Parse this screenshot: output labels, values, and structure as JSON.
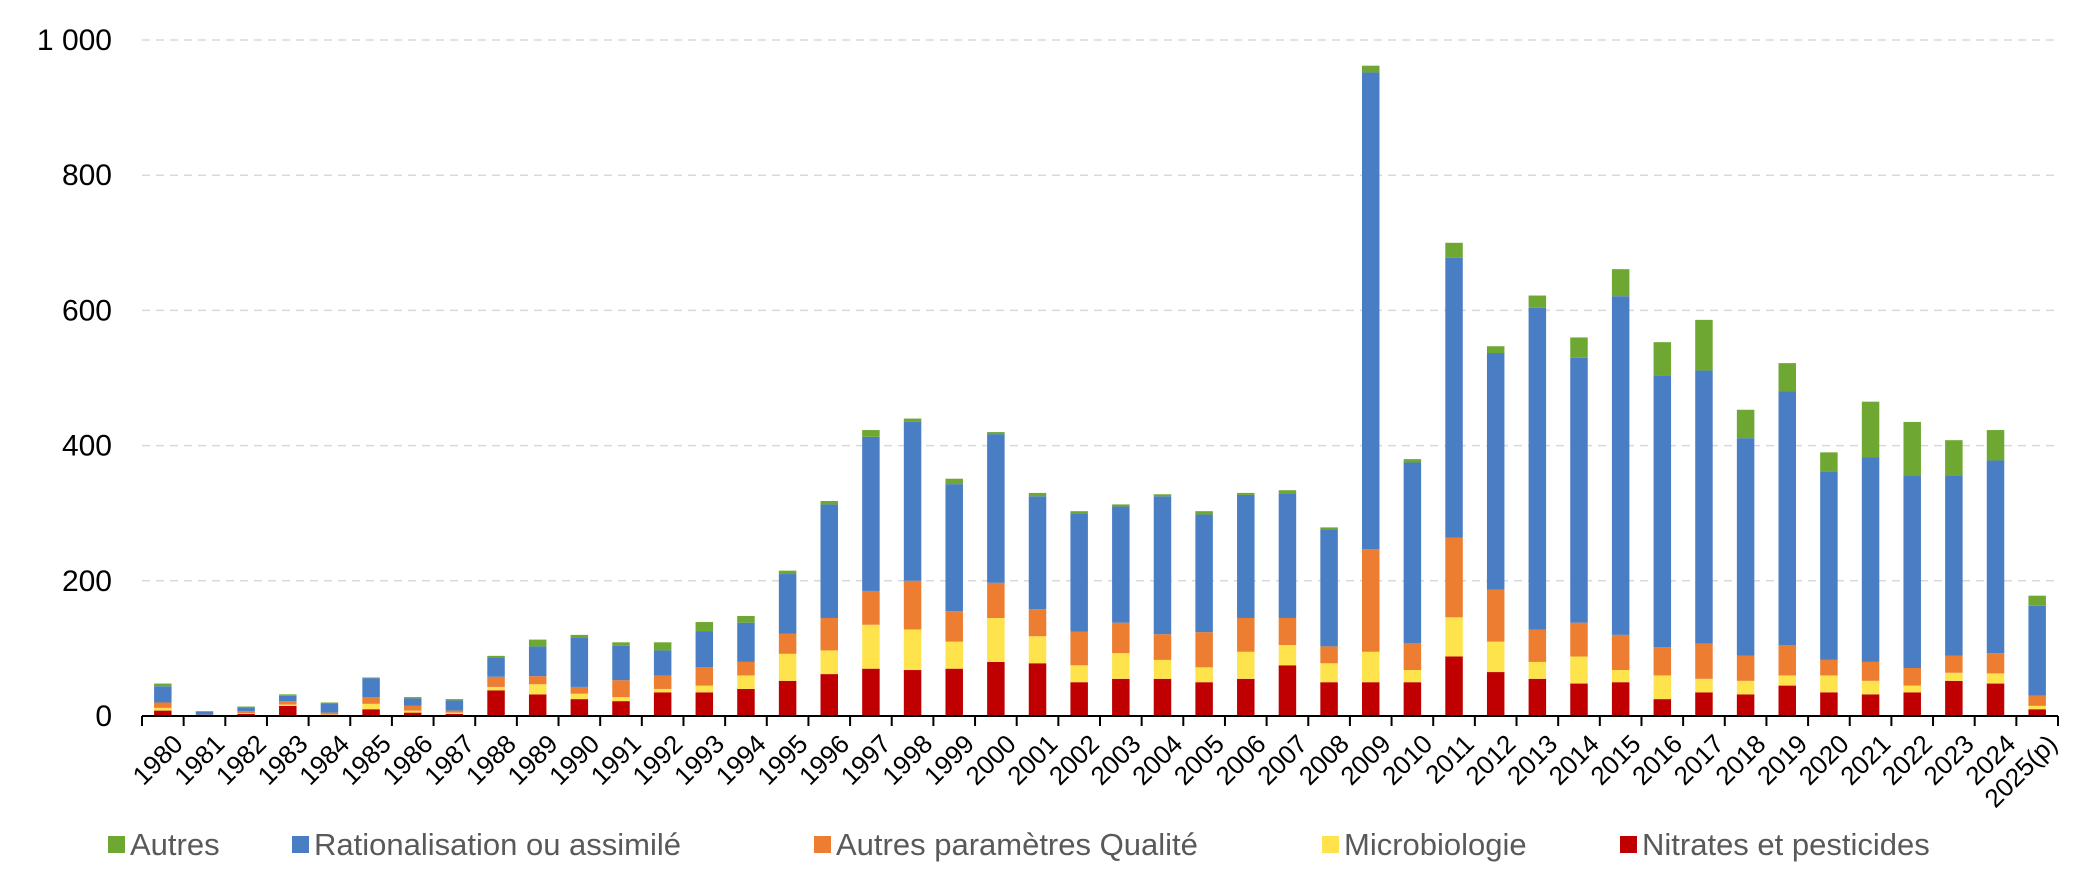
{
  "chart_data": {
    "type": "bar",
    "stacked": true,
    "categories": [
      "1980",
      "1981",
      "1982",
      "1983",
      "1984",
      "1985",
      "1986",
      "1987",
      "1988",
      "1989",
      "1990",
      "1991",
      "1992",
      "1993",
      "1994",
      "1995",
      "1996",
      "1997",
      "1998",
      "1999",
      "2000",
      "2001",
      "2002",
      "2003",
      "2004",
      "2005",
      "2006",
      "2007",
      "2008",
      "2009",
      "2010",
      "2011",
      "2012",
      "2013",
      "2014",
      "2015",
      "2016",
      "2017",
      "2018",
      "2019",
      "2020",
      "2021",
      "2022",
      "2023",
      "2024",
      "2025(p)"
    ],
    "ylim": [
      0,
      1000
    ],
    "yticks": [
      0,
      200,
      400,
      600,
      800,
      1000
    ],
    "ytick_labels": [
      "0",
      "200",
      "400",
      "600",
      "800",
      "1 000"
    ],
    "grid": true,
    "legend_position": "bottom",
    "series": [
      {
        "name": "Nitrates et pesticides",
        "color": "#c00000",
        "values": [
          8,
          1,
          3,
          15,
          2,
          10,
          5,
          3,
          38,
          32,
          25,
          22,
          35,
          35,
          40,
          52,
          62,
          70,
          68,
          70,
          80,
          78,
          50,
          55,
          55,
          50,
          55,
          75,
          50,
          50,
          50,
          88,
          65,
          55,
          48,
          50,
          25,
          35,
          32,
          45,
          35,
          32,
          35,
          52,
          48,
          10
        ]
      },
      {
        "name": "Microbiologie",
        "color": "#ffe34d",
        "values": [
          4,
          0,
          1,
          2,
          1,
          8,
          3,
          2,
          5,
          15,
          8,
          6,
          5,
          10,
          20,
          40,
          35,
          65,
          60,
          40,
          65,
          40,
          25,
          38,
          28,
          22,
          40,
          30,
          28,
          45,
          18,
          58,
          45,
          25,
          40,
          18,
          35,
          20,
          20,
          15,
          25,
          20,
          10,
          12,
          15,
          5
        ]
      },
      {
        "name": "Autres paramètres Qualité",
        "color": "#ed7d31",
        "values": [
          8,
          1,
          3,
          5,
          2,
          10,
          7,
          3,
          15,
          12,
          10,
          25,
          20,
          27,
          20,
          30,
          48,
          50,
          72,
          45,
          52,
          40,
          50,
          45,
          38,
          52,
          50,
          40,
          25,
          152,
          40,
          118,
          77,
          48,
          50,
          52,
          42,
          52,
          37,
          45,
          23,
          28,
          26,
          25,
          30,
          15
        ]
      },
      {
        "name": "Rationalisation ou assimilé",
        "color": "#4a7ec4",
        "values": [
          24,
          5,
          6,
          8,
          14,
          28,
          11,
          15,
          29,
          44,
          73,
          51,
          37,
          53,
          58,
          88,
          168,
          228,
          235,
          188,
          220,
          167,
          175,
          172,
          204,
          174,
          182,
          184,
          173,
          705,
          267,
          414,
          350,
          476,
          392,
          501,
          401,
          404,
          322,
          375,
          279,
          303,
          284,
          267,
          285,
          133
        ]
      },
      {
        "name": "Autres",
        "color": "#6ea833",
        "values": [
          4,
          0,
          1,
          2,
          1,
          1,
          2,
          2,
          2,
          10,
          4,
          5,
          12,
          14,
          10,
          5,
          5,
          10,
          5,
          8,
          3,
          5,
          3,
          3,
          3,
          5,
          3,
          5,
          3,
          10,
          5,
          22,
          10,
          18,
          30,
          40,
          50,
          75,
          42,
          42,
          28,
          82,
          80,
          52,
          45,
          15
        ]
      }
    ],
    "legend_order": [
      "Autres",
      "Rationalisation ou assimilé",
      "Autres paramètres Qualité",
      "Microbiologie",
      "Nitrates et pesticides"
    ]
  }
}
